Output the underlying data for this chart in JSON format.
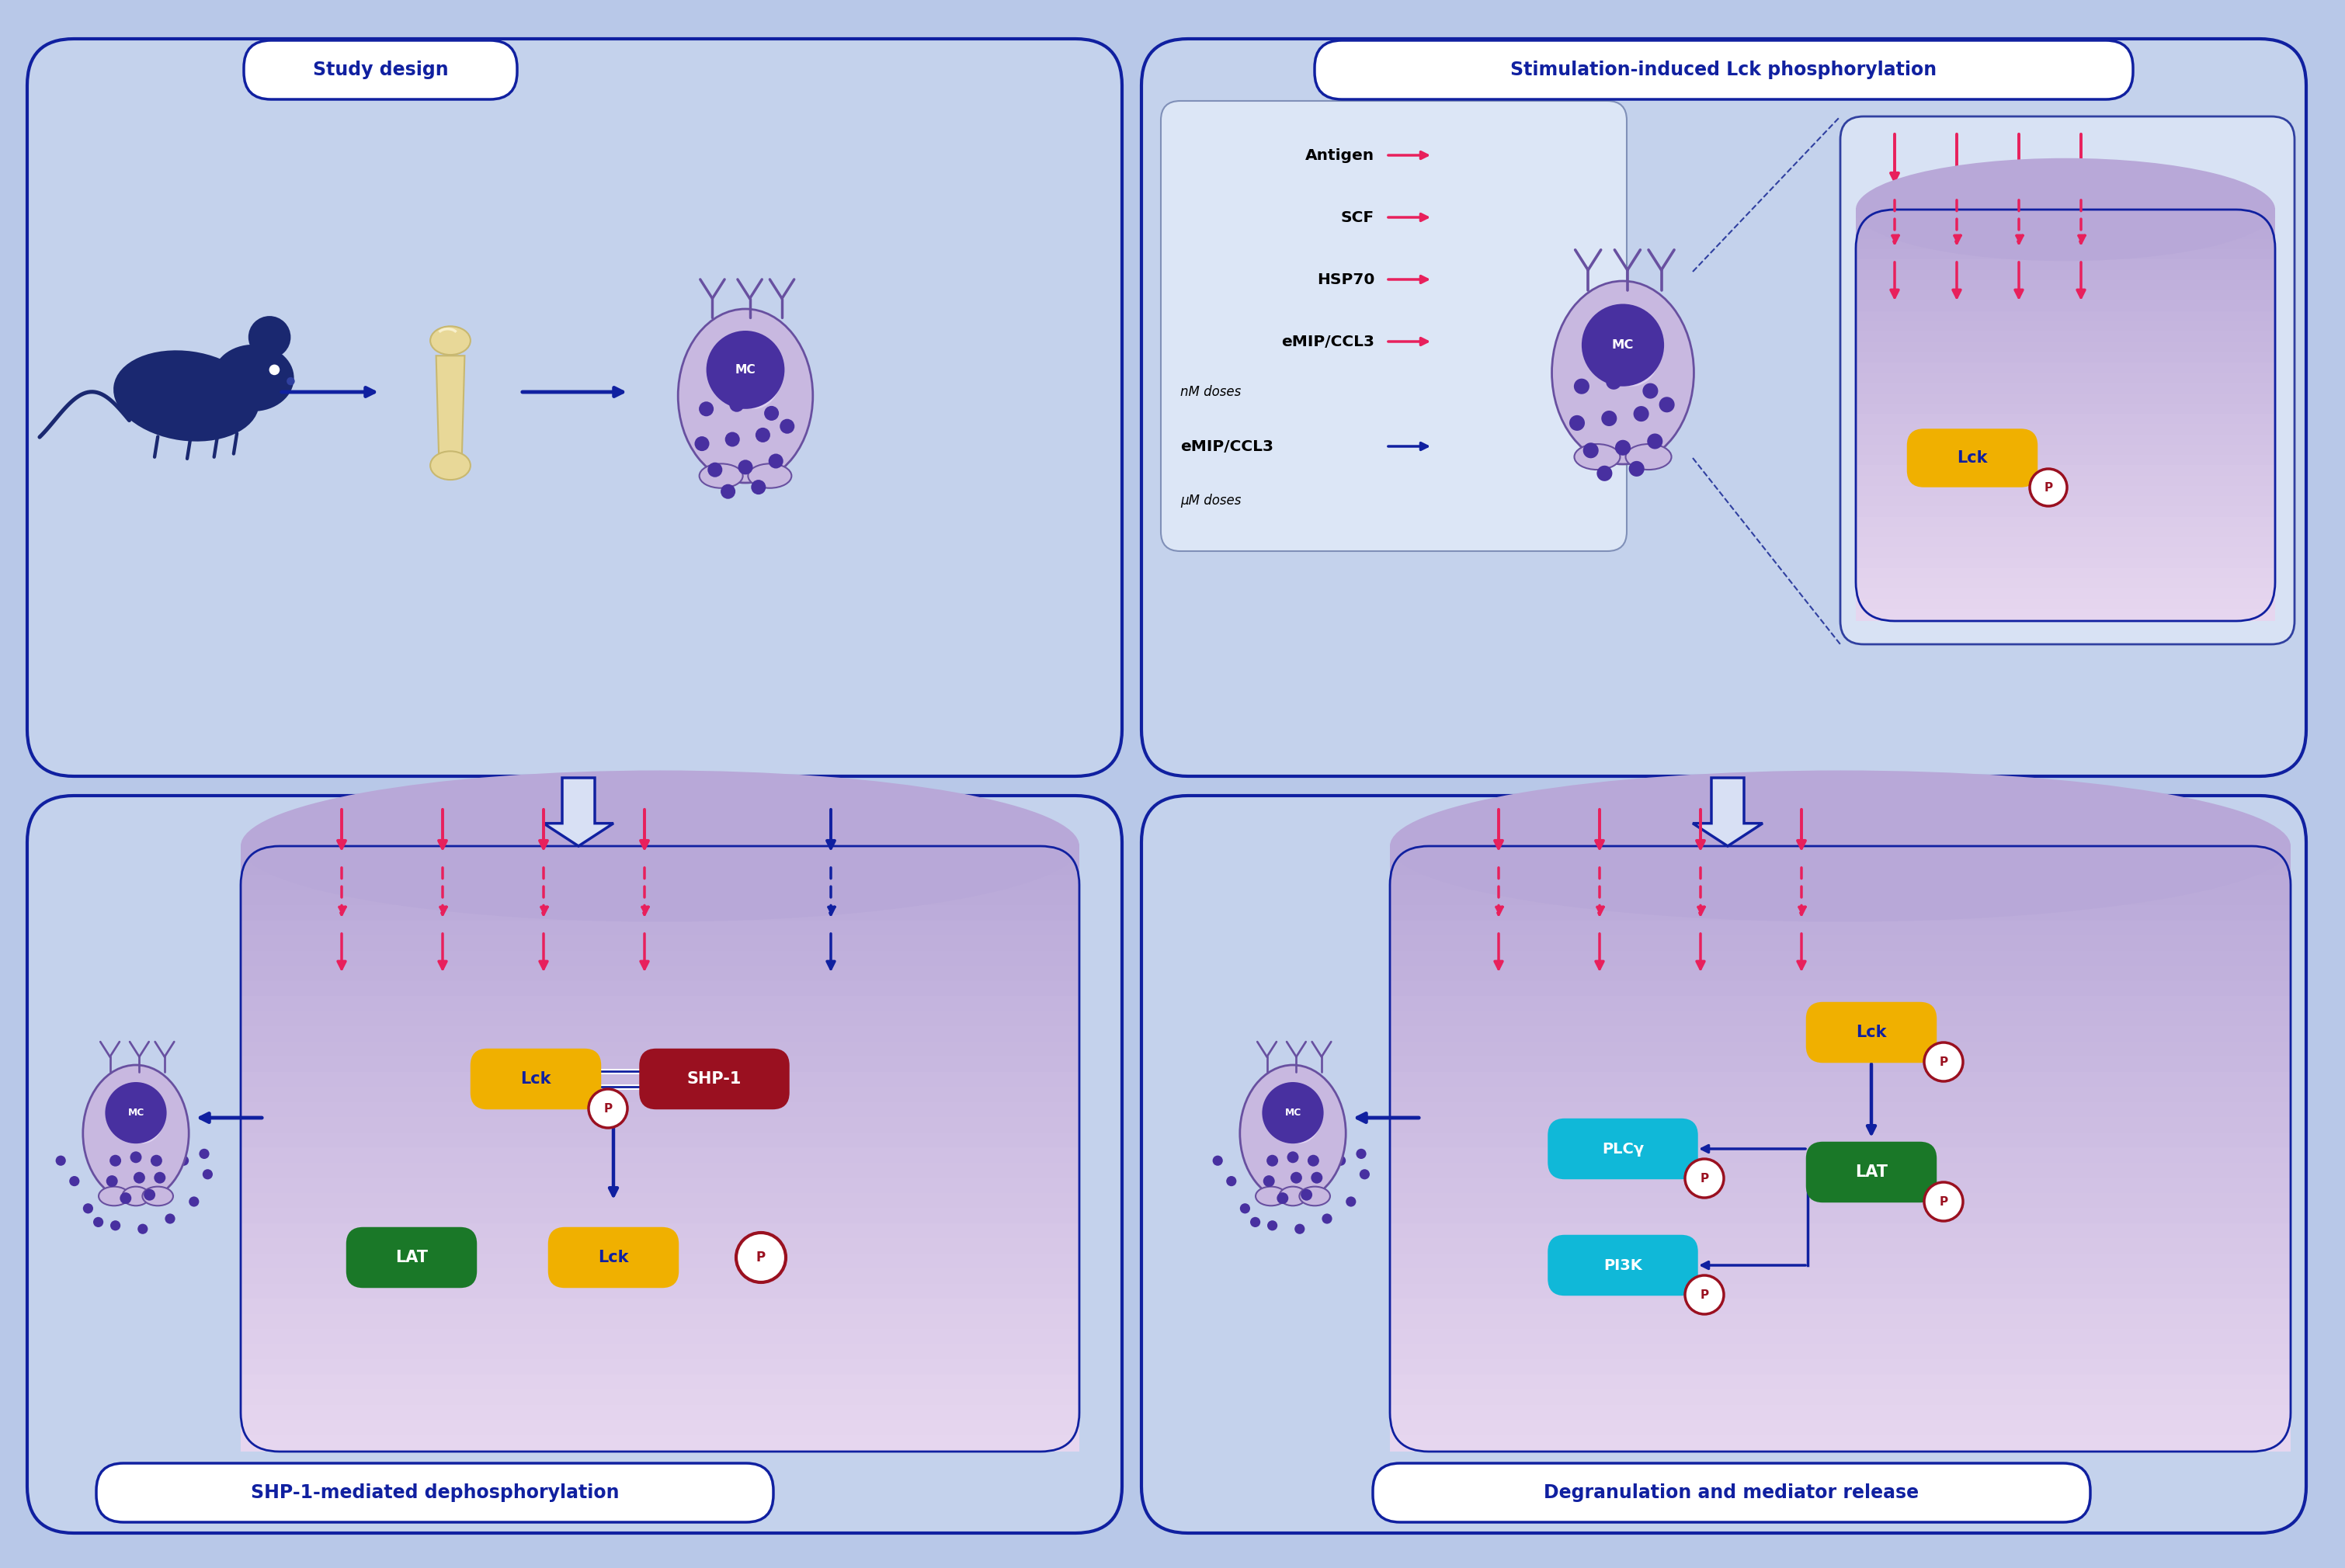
{
  "bg_color": "#b8c8e8",
  "panel_bg": "#c4d2ec",
  "cell_fill": "#c8b8e0",
  "cell_fill_light": "#ddd0f0",
  "cell_border": "#6850a0",
  "nucleus_fill": "#4830a0",
  "pink": "#e8205c",
  "blue_dark": "#1020a0",
  "gold": "#f0b000",
  "red_dark": "#9a1020",
  "green_dark": "#1a7828",
  "cyan": "#10b8d8",
  "white": "#ffffff",
  "inner_top": "#b8a8d8",
  "inner_bot": "#e0d8f0",
  "title_color": "#1020a0",
  "panel_titles": [
    "Study design",
    "Stimulation-induced Lck phosphorylation",
    "SHP-1-mediated dephosphorylation",
    "Degranulation and mediator release"
  ],
  "stimuli_labels": [
    "Antigen",
    "SCF",
    "HSP70",
    "eMIP/CCL3"
  ],
  "stimuli_sublabel": "nM doses",
  "stimuli_label2": "eMIP/CCL3",
  "stimuli_sublabel2": "μM doses"
}
